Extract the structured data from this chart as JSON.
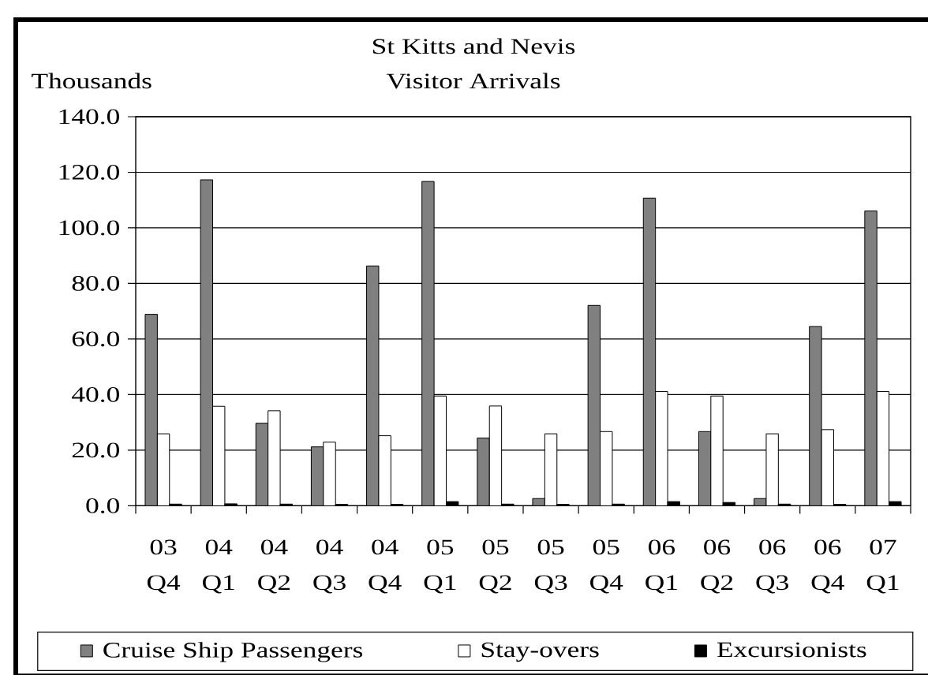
{
  "chart_data": {
    "type": "bar",
    "title": "St Kitts and Nevis",
    "subtitle": "Visitor Arrivals",
    "ylabel": "Thousands",
    "categories": [
      "03 Q4",
      "04 Q1",
      "04 Q2",
      "04 Q3",
      "04 Q4",
      "05 Q1",
      "05 Q2",
      "05 Q3",
      "05 Q4",
      "06 Q1",
      "06 Q2",
      "06 Q3",
      "06 Q4",
      "07 Q1"
    ],
    "series": [
      {
        "name": "Cruise Ship Passengers",
        "color": "#808080",
        "values": [
          68.9,
          117.3,
          29.7,
          21.2,
          86.3,
          116.7,
          24.4,
          2.6,
          72.1,
          110.7,
          26.7,
          2.6,
          64.5,
          106.1
        ]
      },
      {
        "name": "Stay-overs",
        "color": "#ffffff",
        "values": [
          25.9,
          35.8,
          34.2,
          22.9,
          25.2,
          39.5,
          35.9,
          25.9,
          26.7,
          41.1,
          39.5,
          25.9,
          27.4,
          41.1
        ]
      },
      {
        "name": "Excursionists",
        "color": "#000000",
        "values": [
          0.6,
          0.7,
          0.6,
          0.5,
          0.5,
          1.5,
          0.6,
          0.5,
          0.6,
          1.5,
          1.2,
          0.6,
          0.5,
          1.5
        ]
      }
    ],
    "ylim": [
      0,
      140
    ],
    "yticks": [
      {
        "value": 0,
        "label": "0.0"
      },
      {
        "value": 20,
        "label": "20.0"
      },
      {
        "value": 40,
        "label": "40.0"
      },
      {
        "value": 60,
        "label": "60.0"
      },
      {
        "value": 80,
        "label": "80.0"
      },
      {
        "value": 100,
        "label": "100.0"
      },
      {
        "value": 120,
        "label": "120.0"
      },
      {
        "value": 140,
        "label": "140.0"
      }
    ],
    "grid": "y",
    "legend": "bottom"
  }
}
